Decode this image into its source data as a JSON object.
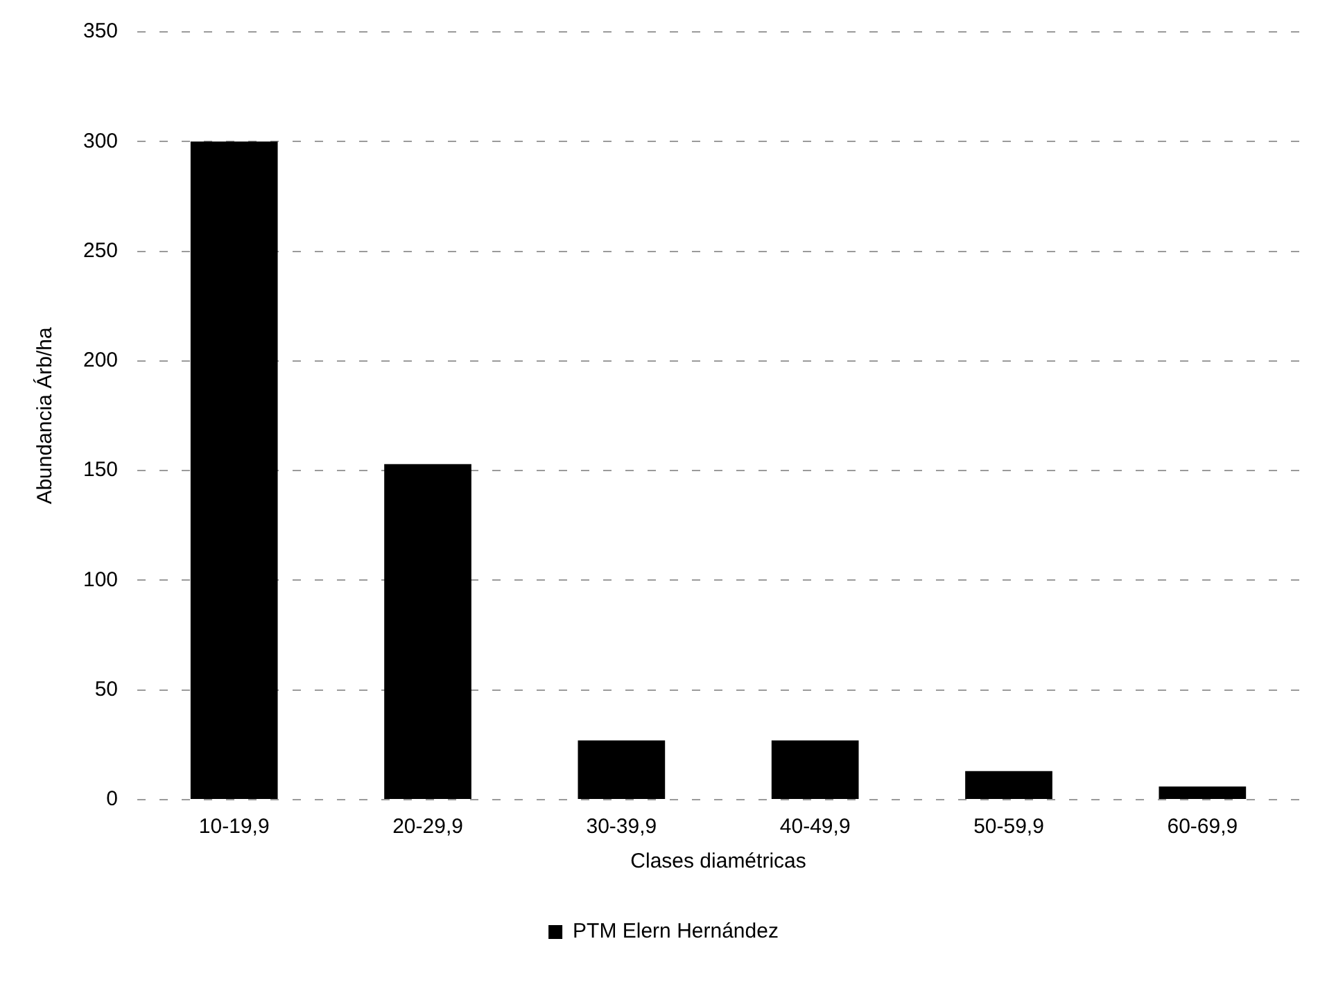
{
  "chart_data": {
    "type": "bar",
    "xlabel": "Clases diamétricas",
    "ylabel": "Abundancia Árb/ha",
    "categories": [
      "10-19,9",
      "20-29,9",
      "30-39,9",
      "40-49,9",
      "50-59,9",
      "60-69,9"
    ],
    "series": [
      {
        "name": "PTM Elern Hernández",
        "color": "#000000",
        "values": [
          300,
          153,
          27,
          27,
          13,
          6
        ]
      }
    ],
    "ylim": [
      0,
      350
    ],
    "yticks": [
      0,
      50,
      100,
      150,
      200,
      250,
      300,
      350
    ],
    "grid": "y",
    "legend": "bottom"
  }
}
